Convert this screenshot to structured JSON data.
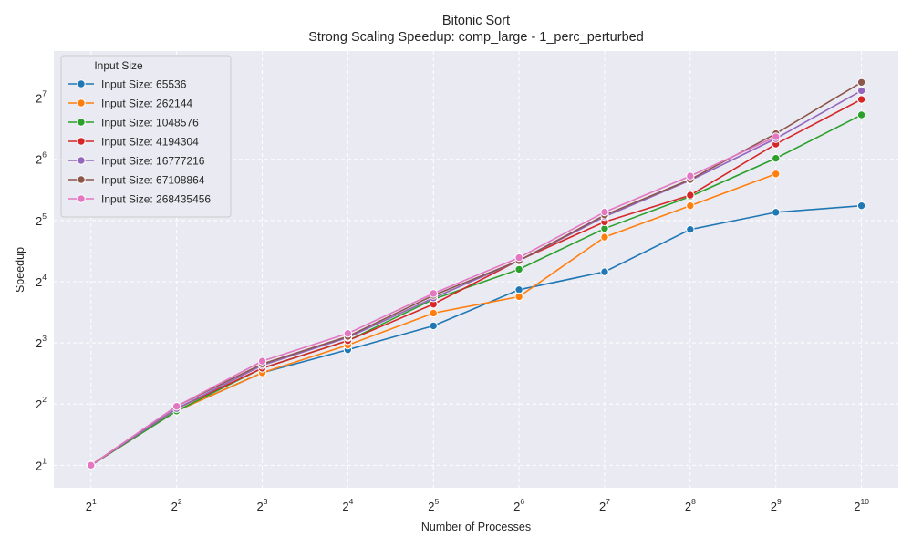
{
  "chart_data": {
    "type": "line",
    "title": "Bitonic Sort",
    "subtitle": "Strong Scaling Speedup: comp_large - 1_perc_perturbed",
    "xlabel": "Number of Processes",
    "ylabel": "Speedup",
    "x_scale": "log2",
    "y_scale": "log2",
    "x": [
      2,
      4,
      8,
      16,
      32,
      64,
      128,
      256,
      512,
      1024
    ],
    "x_tick_labels": [
      {
        "base": "2",
        "exp": "1"
      },
      {
        "base": "2",
        "exp": "2"
      },
      {
        "base": "2",
        "exp": "3"
      },
      {
        "base": "2",
        "exp": "4"
      },
      {
        "base": "2",
        "exp": "5"
      },
      {
        "base": "2",
        "exp": "6"
      },
      {
        "base": "2",
        "exp": "7"
      },
      {
        "base": "2",
        "exp": "8"
      },
      {
        "base": "2",
        "exp": "9"
      },
      {
        "base": "2",
        "exp": "10"
      }
    ],
    "y_ticks": [
      2,
      4,
      8,
      16,
      32,
      64,
      128
    ],
    "y_tick_labels": [
      {
        "base": "2",
        "exp": "1"
      },
      {
        "base": "2",
        "exp": "2"
      },
      {
        "base": "2",
        "exp": "3"
      },
      {
        "base": "2",
        "exp": "4"
      },
      {
        "base": "2",
        "exp": "5"
      },
      {
        "base": "2",
        "exp": "6"
      },
      {
        "base": "2",
        "exp": "7"
      }
    ],
    "xlim": [
      1.48,
      1380
    ],
    "ylim": [
      1.55,
      218
    ],
    "grid": true,
    "legend": {
      "title": "Input Size",
      "position": "top-left"
    },
    "series": [
      {
        "name": "Input Size: 65536",
        "color": "#1f77b4",
        "values": [
          2.0,
          3.7,
          5.7,
          7.4,
          9.7,
          14.6,
          17.9,
          28.9,
          35.1,
          37.8
        ]
      },
      {
        "name": "Input Size: 262144",
        "color": "#ff7f0e",
        "values": [
          2.0,
          3.7,
          5.7,
          7.8,
          11.2,
          13.5,
          26.5,
          37.8,
          54.2,
          null
        ]
      },
      {
        "name": "Input Size: 1048576",
        "color": "#2ca02c",
        "values": [
          2.0,
          3.7,
          6.0,
          8.2,
          13.1,
          18.4,
          29.2,
          42.0,
          64.7,
          105.8
        ]
      },
      {
        "name": "Input Size: 4194304",
        "color": "#d62728",
        "values": [
          2.0,
          3.8,
          6.0,
          8.2,
          12.4,
          20.4,
          31.5,
          42.6,
          76.0,
          126.1
        ]
      },
      {
        "name": "Input Size: 16777216",
        "color": "#9467bd",
        "values": [
          2.0,
          3.8,
          6.2,
          8.5,
          13.3,
          20.3,
          33.4,
          50.4,
          80.9,
          139.2
        ]
      },
      {
        "name": "Input Size: 67108864",
        "color": "#8c564b",
        "values": [
          2.0,
          3.9,
          6.3,
          8.6,
          13.7,
          20.3,
          34.0,
          50.9,
          85.6,
          153.0
        ]
      },
      {
        "name": "Input Size: 268435456",
        "color": "#e377c2",
        "values": [
          2.0,
          3.9,
          6.5,
          8.9,
          14.0,
          21.0,
          35.2,
          52.9,
          82.6,
          null
        ]
      }
    ]
  }
}
